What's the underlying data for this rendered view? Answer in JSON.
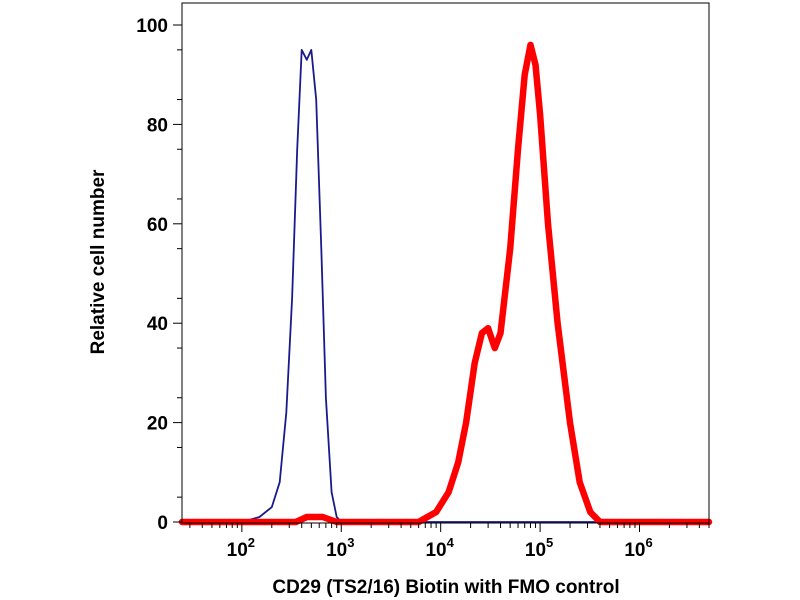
{
  "chart_data": {
    "type": "line",
    "title": "",
    "xlabel": "CD29 (TS2/16) Biotin with FMO control",
    "ylabel": "Relative cell number",
    "x_scale": "log",
    "xlim": [
      25,
      5000000
    ],
    "ylim": [
      0,
      100
    ],
    "y_ticks": [
      "0",
      "20",
      "40",
      "60",
      "80",
      "100"
    ],
    "x_ticks": [
      {
        "base": "10",
        "exp": "2",
        "value": 100
      },
      {
        "base": "10",
        "exp": "3",
        "value": 1000
      },
      {
        "base": "10",
        "exp": "4",
        "value": 10000
      },
      {
        "base": "10",
        "exp": "5",
        "value": 100000
      },
      {
        "base": "10",
        "exp": "6",
        "value": 1000000
      }
    ],
    "grid": false,
    "legend": "none",
    "series": [
      {
        "color": "#1a1a8c",
        "x": [
          25,
          100,
          150,
          200,
          240,
          280,
          320,
          360,
          400,
          450,
          500,
          560,
          630,
          700,
          800,
          900,
          1000,
          5000000
        ],
        "y": [
          0,
          0,
          1,
          3,
          8,
          22,
          45,
          75,
          95,
          93,
          95,
          85,
          55,
          25,
          6,
          1,
          0,
          0
        ]
      },
      {
        "color": "#ff0000",
        "x": [
          25,
          350,
          450,
          550,
          650,
          900,
          6000,
          9000,
          12000,
          15000,
          18000,
          22000,
          26000,
          30000,
          35000,
          40000,
          50000,
          60000,
          70000,
          80000,
          90000,
          100000,
          120000,
          150000,
          200000,
          250000,
          320000,
          400000,
          500000,
          5000000
        ],
        "y": [
          0,
          0,
          1,
          1,
          1,
          0,
          0,
          2,
          6,
          12,
          20,
          32,
          38,
          39,
          35,
          38,
          55,
          75,
          90,
          96,
          92,
          82,
          60,
          40,
          20,
          8,
          2,
          0,
          0,
          0
        ]
      }
    ]
  }
}
